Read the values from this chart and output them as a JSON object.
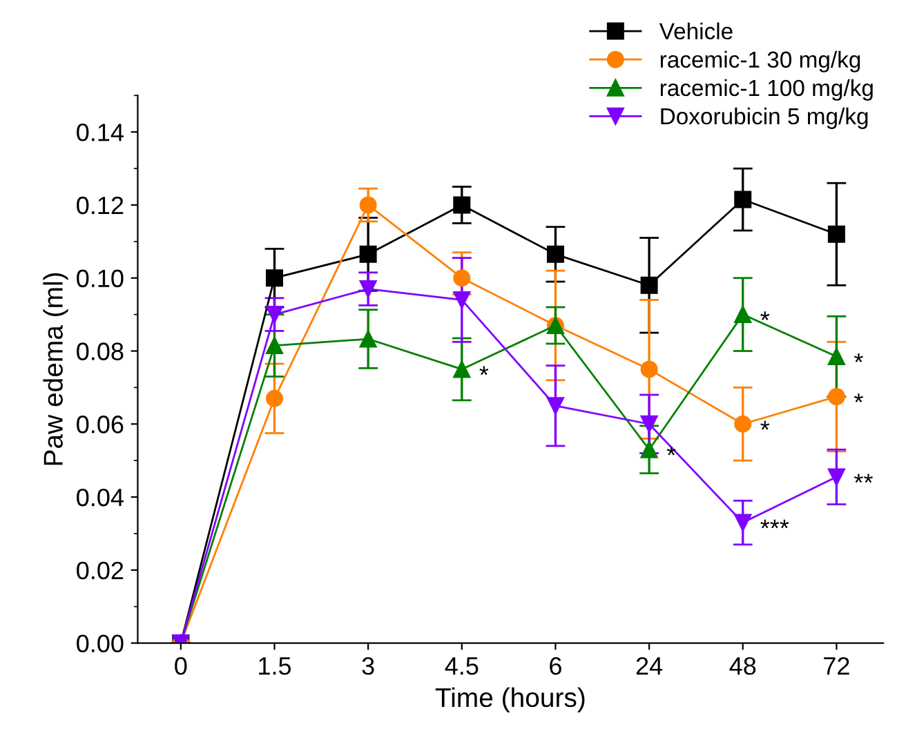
{
  "chart_data": {
    "type": "line",
    "xlabel": "Time (hours)",
    "ylabel": "Paw edema (ml)",
    "categories": [
      "0",
      "1.5",
      "3",
      "4.5",
      "6",
      "24",
      "48",
      "72"
    ],
    "series": [
      {
        "name": "Vehicle",
        "color": "#000000",
        "marker": "square",
        "values": [
          0,
          0.1,
          0.1065,
          0.12,
          0.1065,
          0.098,
          0.1215,
          0.112
        ],
        "errors": [
          null,
          0.008,
          0.01,
          0.005,
          0.0075,
          0.013,
          0.0085,
          0.014
        ]
      },
      {
        "name": "racemic-1 30 mg/kg",
        "color": "#ff8000",
        "marker": "circle",
        "values": [
          0,
          0.067,
          0.12,
          0.1,
          0.087,
          0.075,
          0.06,
          0.0675
        ],
        "errors": [
          null,
          0.0095,
          0.0045,
          [
            0.0955,
            0.107
          ],
          0.015,
          0.019,
          0.01,
          0.015
        ]
      },
      {
        "name": "racemic-1 100 mg/kg",
        "color": "#008000",
        "marker": "triangle",
        "values": [
          0,
          0.0815,
          0.0833,
          0.075,
          0.087,
          0.053,
          0.09,
          0.0785
        ],
        "errors": [
          null,
          0.0085,
          0.008,
          0.0085,
          0.005,
          0.0065,
          0.01,
          0.011
        ]
      },
      {
        "name": "Doxorubicin 5 mg/kg",
        "color": "#8000ff",
        "marker": "triangle_down",
        "values": [
          0,
          0.09,
          0.097,
          0.094,
          0.065,
          0.06,
          0.033,
          0.0455
        ],
        "errors": [
          null,
          0.0045,
          0.0045,
          0.0115,
          0.011,
          0.008,
          0.006,
          0.0075
        ]
      }
    ],
    "ylim": [
      0,
      0.15
    ],
    "yticks": [
      {
        "value": 0,
        "label": "0.00"
      },
      {
        "value": 0.02,
        "label": "0.02"
      },
      {
        "value": 0.04,
        "label": "0.04"
      },
      {
        "value": 0.06,
        "label": "0.06"
      },
      {
        "value": 0.08,
        "label": "0.08"
      },
      {
        "value": 0.1,
        "label": "0.10"
      },
      {
        "value": 0.12,
        "label": "0.12"
      },
      {
        "value": 0.14,
        "label": "0.14"
      }
    ],
    "annotations": [
      {
        "text": "*",
        "x": "4.5",
        "y": 0.075
      },
      {
        "text": "*",
        "x": "24",
        "y": 0.053
      },
      {
        "text": "*",
        "x": "48",
        "y": 0.09
      },
      {
        "text": "*",
        "x": "72",
        "y": 0.0785
      },
      {
        "text": "*",
        "x": "48",
        "y": 0.06
      },
      {
        "text": "*",
        "x": "72",
        "y": 0.0675
      },
      {
        "text": "***",
        "x": "48",
        "y": 0.033
      },
      {
        "text": "**",
        "x": "72",
        "y": 0.0455
      }
    ],
    "grid": false,
    "legend": "top right",
    "line_style": "solid"
  }
}
